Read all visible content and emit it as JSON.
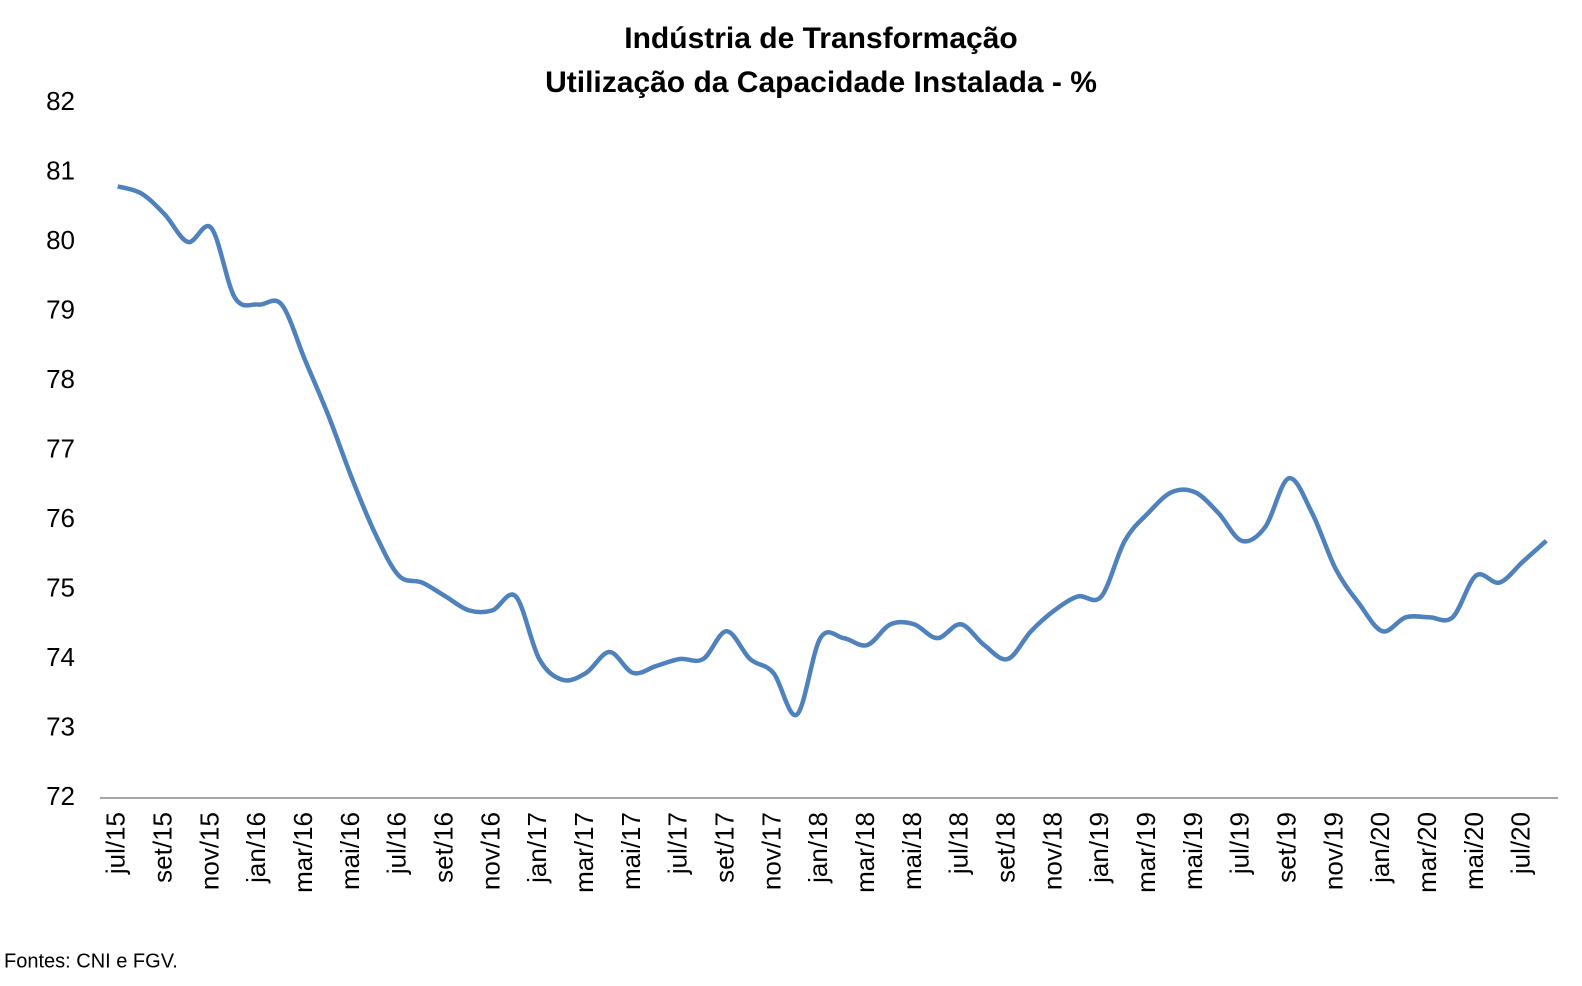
{
  "chart_data": {
    "type": "line",
    "title": "Indústria de Transformação",
    "subtitle": "Utilização da Capacidade Instalada - %",
    "source": "Fontes: CNI e FGV.",
    "categories": [
      "jul/15",
      null,
      "set/15",
      null,
      "nov/15",
      null,
      "jan/16",
      null,
      "mar/16",
      null,
      "mai/16",
      null,
      "jul/16",
      null,
      "set/16",
      null,
      "nov/16",
      null,
      "jan/17",
      null,
      "mar/17",
      null,
      "mai/17",
      null,
      "jul/17",
      null,
      "set/17",
      null,
      "nov/17",
      null,
      "jan/18",
      null,
      "mar/18",
      null,
      "mai/18",
      null,
      "jul/18",
      null,
      "set/18",
      null,
      "nov/18",
      null,
      "jan/19",
      null,
      "mar/19",
      null,
      "mai/19",
      null,
      "jul/19",
      null,
      "set/19",
      null,
      "nov/19",
      null,
      "jan/20",
      null,
      "mar/20",
      null,
      "mai/20",
      null,
      "jul/20",
      null
    ],
    "values": [
      80.8,
      80.7,
      80.4,
      80.0,
      80.2,
      79.2,
      79.1,
      79.1,
      78.3,
      77.5,
      76.6,
      75.8,
      75.2,
      75.1,
      74.9,
      74.7,
      74.7,
      74.9,
      74.0,
      73.7,
      73.8,
      74.1,
      73.8,
      73.9,
      74.0,
      74.0,
      74.4,
      74.0,
      73.8,
      73.2,
      74.3,
      74.3,
      74.2,
      74.5,
      74.5,
      74.3,
      74.5,
      74.2,
      74.0,
      74.4,
      74.7,
      74.9,
      74.9,
      75.7,
      76.1,
      76.4,
      76.4,
      76.1,
      75.7,
      75.9,
      76.6,
      76.1,
      75.3,
      74.8,
      74.4,
      74.6,
      74.6,
      74.6,
      75.2,
      75.1,
      75.4,
      75.7
    ],
    "color": "#4f81bd",
    "ylim": [
      72,
      82
    ],
    "yticks": [
      72,
      73,
      74,
      75,
      76,
      77,
      78,
      79,
      80,
      81,
      82
    ],
    "grid": false
  }
}
